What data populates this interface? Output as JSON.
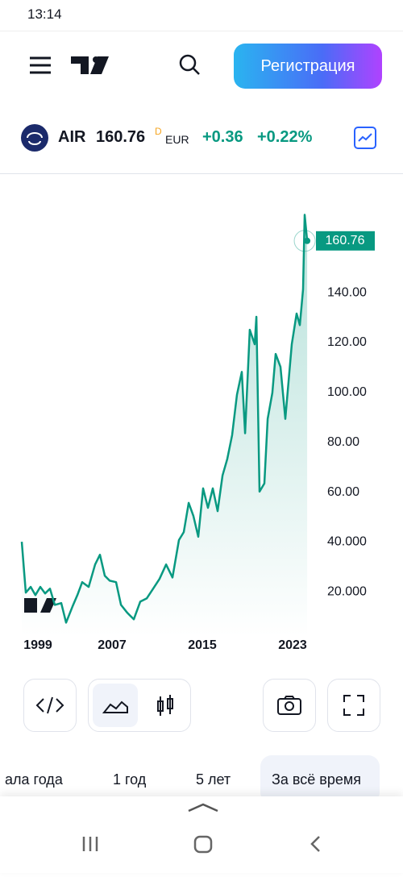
{
  "status": {
    "time": "13:14"
  },
  "header": {
    "register": "Регистрация"
  },
  "ticker": {
    "symbol": "AIR",
    "price": "160.76",
    "interval": "D",
    "currency": "EUR",
    "change": "+0.36",
    "change_pct": "+0.22%"
  },
  "chart_data": {
    "type": "line",
    "x": [
      1999.0,
      1999.36,
      1999.79,
      2000.21,
      2000.64,
      2001.07,
      2001.5,
      2001.93,
      2002.5,
      2002.93,
      2003.5,
      2003.93,
      2004.36,
      2004.93,
      2005.5,
      2005.93,
      2006.36,
      2006.79,
      2007.36,
      2007.79,
      2008.36,
      2008.93,
      2009.5,
      2010.07,
      2010.64,
      2011.21,
      2011.79,
      2012.36,
      2012.93,
      2013.36,
      2013.79,
      2014.21,
      2014.64,
      2015.07,
      2015.5,
      2015.93,
      2016.36,
      2016.79,
      2017.21,
      2017.64,
      2018.07,
      2018.5,
      2018.79,
      2019.21,
      2019.64,
      2019.79,
      2020.07,
      2020.5,
      2020.79,
      2021.21,
      2021.5,
      2021.93,
      2022.36,
      2022.93,
      2023.36,
      2023.64,
      2023.93,
      2024.07,
      2024.29
    ],
    "series": [
      {
        "name": "AIR",
        "color": "#089981",
        "values": [
          40.1,
          19.7,
          22,
          18.7,
          22,
          19.4,
          21.3,
          14.8,
          15.5,
          7.7,
          14.2,
          18.7,
          23.9,
          22,
          31,
          34.9,
          26.5,
          24.5,
          23.9,
          14.8,
          11.6,
          9,
          16.1,
          17.4,
          21.3,
          25.2,
          31,
          25.8,
          40.8,
          44,
          55.7,
          50.5,
          42.1,
          61.5,
          53.7,
          61.5,
          52.4,
          66.7,
          73.2,
          82.9,
          99.1,
          108.2,
          83.6,
          125.1,
          119.3,
          130.3,
          60.2,
          63.5,
          89.4,
          99.8,
          115.4,
          110.2,
          89.4,
          119.3,
          131.6,
          127,
          141.3,
          171.2,
          160.76
        ]
      }
    ],
    "price_label": "160.76",
    "xlim": [
      1999,
      2025
    ],
    "ylim": [
      2,
      183
    ],
    "xticks": [
      1999,
      2007,
      2015,
      2023
    ],
    "yticks": [
      {
        "value": 20,
        "label": "20.000"
      },
      {
        "value": 40,
        "label": "40.000"
      },
      {
        "value": 60,
        "label": "60.00"
      },
      {
        "value": 80,
        "label": "80.00"
      },
      {
        "value": 100,
        "label": "100.00"
      },
      {
        "value": 120,
        "label": "120.00"
      },
      {
        "value": 140,
        "label": "140.00"
      }
    ],
    "grid": false
  },
  "tabs": [
    "ала года",
    "1 год",
    "5 лет",
    "За всё время"
  ]
}
